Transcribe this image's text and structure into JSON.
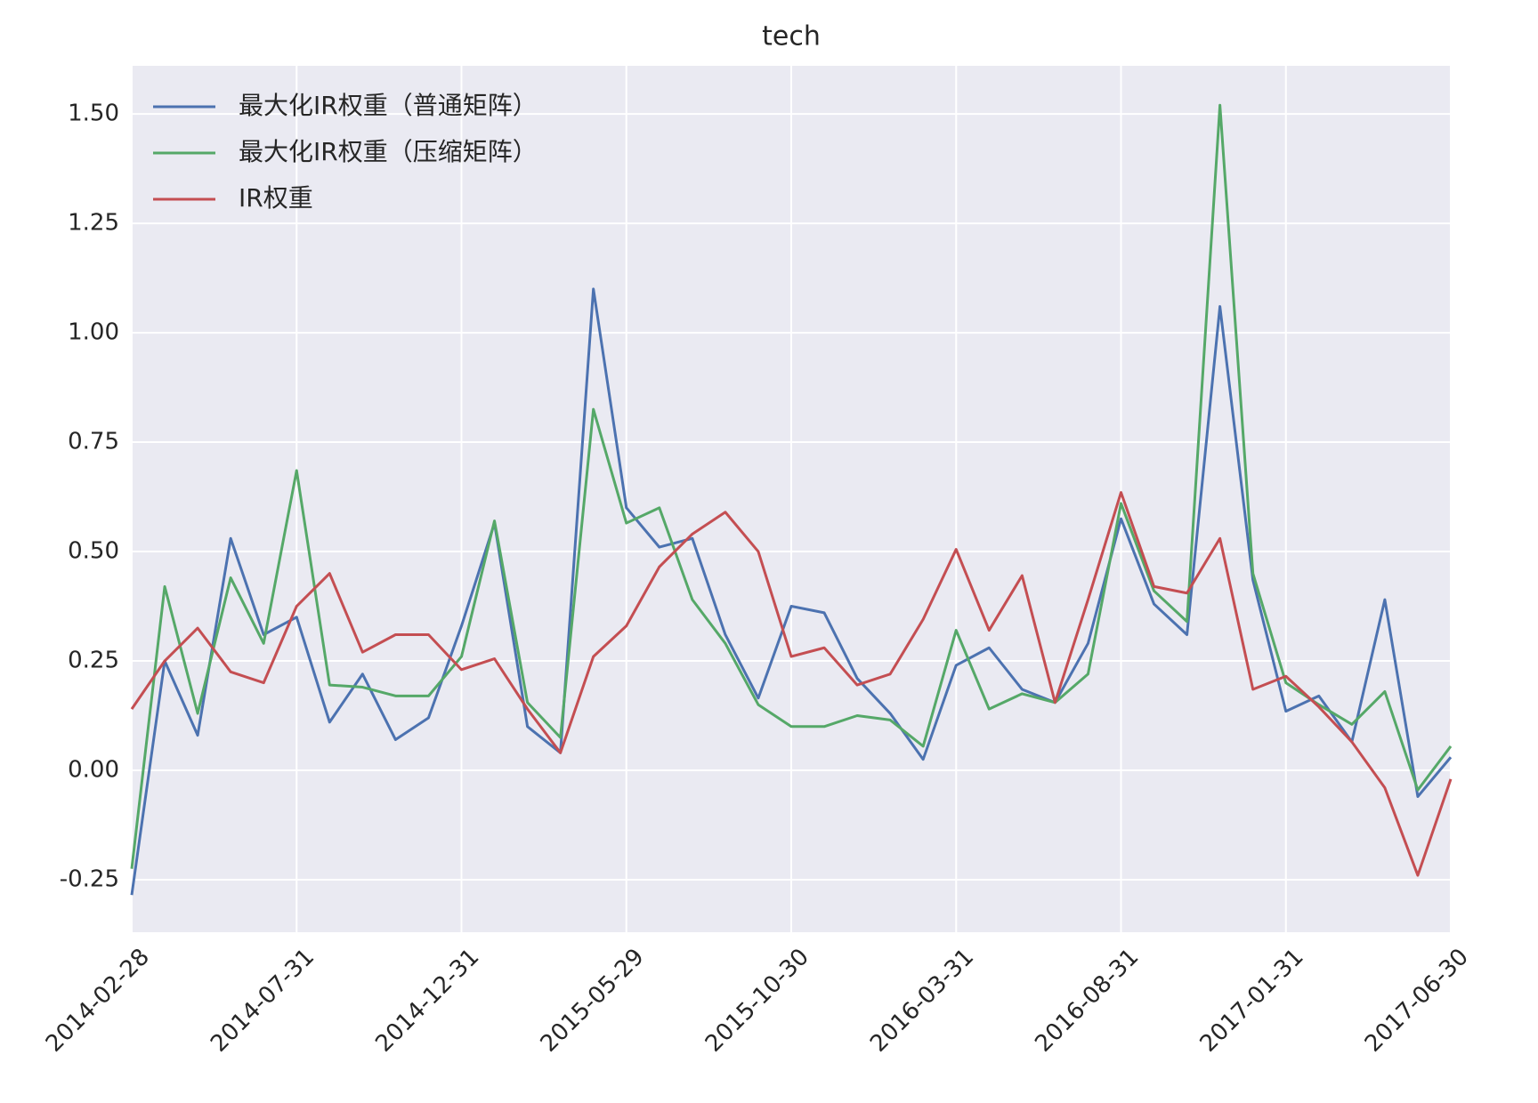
{
  "chart_data": {
    "type": "line",
    "title": "tech",
    "categories": [
      "2014-02-28",
      null,
      null,
      null,
      null,
      "2014-07-31",
      null,
      null,
      null,
      null,
      "2014-12-31",
      null,
      null,
      null,
      null,
      "2015-05-29",
      null,
      null,
      null,
      null,
      "2015-10-30",
      null,
      null,
      null,
      null,
      "2016-03-31",
      null,
      null,
      null,
      null,
      "2016-08-31",
      null,
      null,
      null,
      null,
      "2017-01-31",
      null,
      null,
      null,
      null,
      "2017-06-30"
    ],
    "series": [
      {
        "name": "最大化IR权重（普通矩阵）",
        "color": "#4c72b0",
        "values": [
          -0.285,
          0.25,
          0.08,
          0.53,
          0.31,
          0.35,
          0.11,
          0.22,
          0.07,
          0.12,
          0.33,
          0.565,
          0.1,
          0.04,
          1.1,
          0.6,
          0.51,
          0.53,
          0.31,
          0.165,
          0.375,
          0.36,
          0.21,
          0.13,
          0.025,
          0.24,
          0.28,
          0.185,
          0.155,
          0.29,
          0.575,
          0.38,
          0.31,
          1.06,
          0.435,
          0.135,
          0.17,
          0.065,
          0.39,
          -0.06,
          0.03
        ]
      },
      {
        "name": "最大化IR权重（压缩矩阵）",
        "color": "#55a868",
        "values": [
          -0.225,
          0.42,
          0.13,
          0.44,
          0.29,
          0.685,
          0.195,
          0.19,
          0.17,
          0.17,
          0.26,
          0.57,
          0.155,
          0.075,
          0.825,
          0.565,
          0.6,
          0.39,
          0.29,
          0.15,
          0.1,
          0.1,
          0.125,
          0.115,
          0.055,
          0.32,
          0.14,
          0.175,
          0.155,
          0.22,
          0.61,
          0.41,
          0.34,
          1.52,
          0.45,
          0.2,
          0.15,
          0.105,
          0.18,
          -0.045,
          0.055
        ]
      },
      {
        "name": "IR权重",
        "color": "#c44e52",
        "values": [
          0.14,
          0.25,
          0.325,
          0.225,
          0.2,
          0.375,
          0.45,
          0.27,
          0.31,
          0.31,
          0.23,
          0.255,
          0.14,
          0.04,
          0.26,
          0.33,
          0.465,
          0.54,
          0.59,
          0.5,
          0.26,
          0.28,
          0.195,
          0.22,
          0.345,
          0.505,
          0.32,
          0.445,
          0.155,
          0.39,
          0.635,
          0.42,
          0.405,
          0.53,
          0.185,
          0.215,
          0.145,
          0.065,
          -0.04,
          -0.24,
          -0.02
        ]
      }
    ],
    "ylim": [
      -0.37,
      1.61
    ],
    "yticks": [
      {
        "value": -0.25,
        "label": "-0.25"
      },
      {
        "value": 0,
        "label": "0.00"
      },
      {
        "value": 0.25,
        "label": "0.25"
      },
      {
        "value": 0.5,
        "label": "0.50"
      },
      {
        "value": 0.75,
        "label": "0.75"
      },
      {
        "value": 1,
        "label": "1.00"
      },
      {
        "value": 1.25,
        "label": "1.25"
      },
      {
        "value": 1.5,
        "label": "1.50"
      }
    ],
    "grid": true,
    "legend": "upper left",
    "background": "#eaeaf2"
  }
}
